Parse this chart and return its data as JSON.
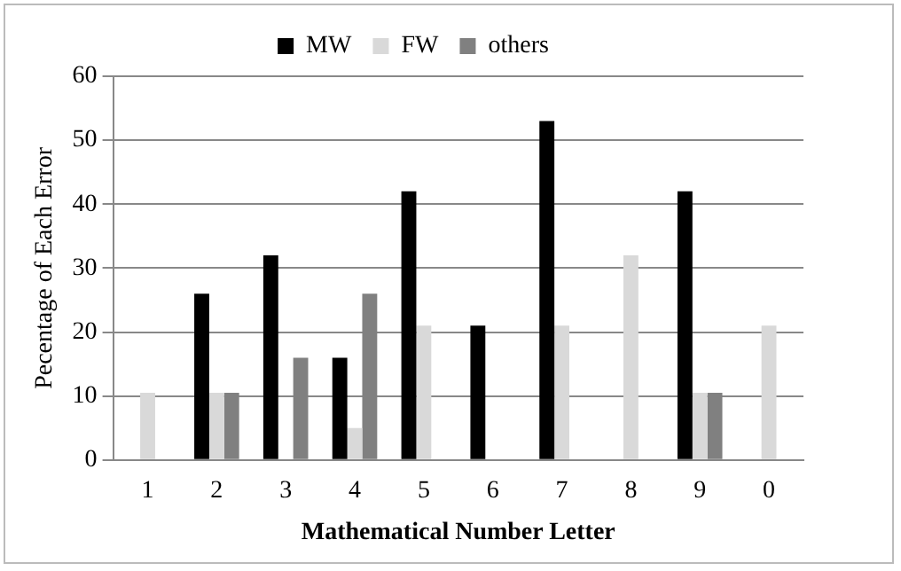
{
  "chart_data": {
    "type": "bar",
    "xlabel": "Mathematical Number Letter",
    "ylabel": "Pecentage of Each Error",
    "categories": [
      "1",
      "2",
      "3",
      "4",
      "5",
      "6",
      "7",
      "8",
      "9",
      "0"
    ],
    "series": [
      {
        "name": "MW",
        "color": "#000000",
        "values": [
          0,
          26,
          32,
          16,
          42,
          21,
          53,
          0,
          42,
          0
        ]
      },
      {
        "name": "FW",
        "color": "#d9d9d9",
        "values": [
          10.5,
          10.5,
          0,
          5,
          21,
          0,
          21,
          32,
          10.5,
          21
        ]
      },
      {
        "name": "others",
        "color": "#808080",
        "values": [
          0,
          10.5,
          16,
          26,
          0,
          0,
          0,
          0,
          10.5,
          0
        ]
      }
    ],
    "ylim": [
      0,
      60
    ],
    "yticks": [
      0,
      10,
      20,
      30,
      40,
      50,
      60
    ],
    "grid": "y",
    "legend": "top"
  }
}
